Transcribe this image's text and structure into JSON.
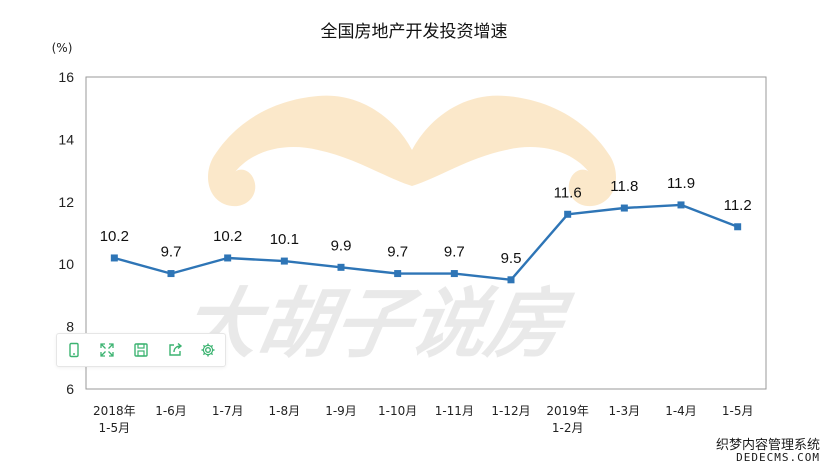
{
  "chart_data": {
    "type": "line",
    "title": "全国房地产开发投资增速",
    "ylabel": "(%)",
    "ylim": [
      6,
      16
    ],
    "yticks": [
      "6",
      "8",
      "10",
      "12",
      "14",
      "16"
    ],
    "categories": [
      [
        "2018年",
        "1-5月"
      ],
      [
        "1-6月"
      ],
      [
        "1-7月"
      ],
      [
        "1-8月"
      ],
      [
        "1-9月"
      ],
      [
        "1-10月"
      ],
      [
        "1-11月"
      ],
      [
        "1-12月"
      ],
      [
        "2019年",
        "1-2月"
      ],
      [
        "1-3月"
      ],
      [
        "1-4月"
      ],
      [
        "1-5月"
      ]
    ],
    "series": [
      {
        "values": [
          10.2,
          9.7,
          10.2,
          10.1,
          9.9,
          9.7,
          9.7,
          9.5,
          11.6,
          11.8,
          11.9,
          11.2
        ],
        "labels": [
          "10.2",
          "9.7",
          "10.2",
          "10.1",
          "9.9",
          "9.7",
          "9.7",
          "9.5",
          "11.6",
          "11.8",
          "11.9",
          "11.2"
        ],
        "color": "#2e75b6"
      }
    ],
    "grid": false,
    "legend": "none"
  },
  "watermark": {
    "center_text": "大胡子说房",
    "logo": "mustache-logo",
    "mustache_color": "#fbe6c4",
    "footer_line1": "织梦内容管理系统",
    "footer_line2": "DEDECMS.COM"
  },
  "toolbar": {
    "icons": [
      "tablet-icon",
      "fullscreen-icon",
      "save-icon",
      "share-icon",
      "settings-icon"
    ],
    "accent_color": "#3cb371"
  }
}
